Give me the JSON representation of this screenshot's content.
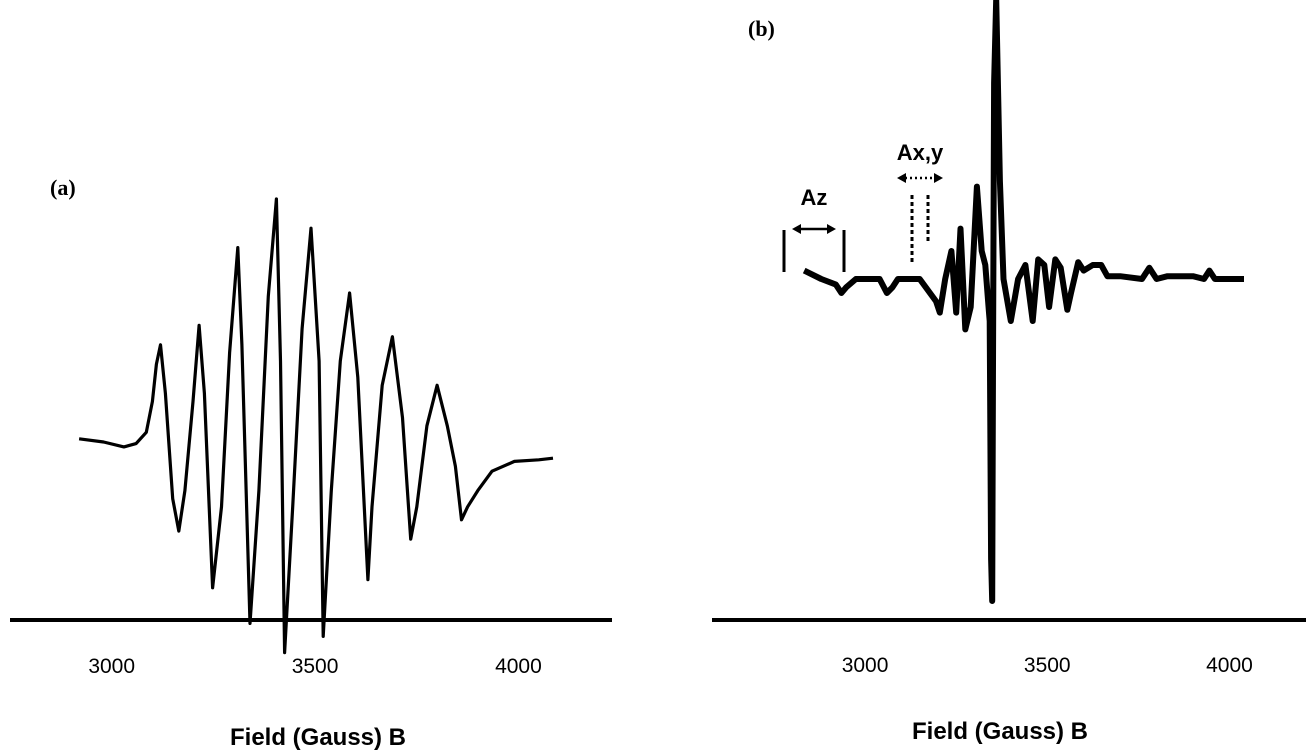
{
  "chart_data": [
    {
      "type": "line",
      "panel_label": "(a)",
      "xlabel": "Field (Gauss) B",
      "ylabel": "",
      "xlim": [
        2750,
        4230
      ],
      "xticks": [
        3000,
        3500,
        4000
      ],
      "grid": false,
      "series": [
        {
          "x": [
            2920,
            2980,
            3030,
            3060,
            3085,
            3100,
            3110,
            3120,
            3132,
            3150,
            3165,
            3180,
            3200,
            3215,
            3228,
            3248,
            3270,
            3290,
            3310,
            3320,
            3340,
            3362,
            3385,
            3405,
            3415,
            3425,
            3445,
            3468,
            3490,
            3510,
            3520,
            3540,
            3562,
            3585,
            3605,
            3630,
            3640,
            3665,
            3690,
            3715,
            3735,
            3750,
            3775,
            3800,
            3825,
            3845,
            3860,
            3875,
            3900,
            3935,
            3990,
            4050,
            4085
          ],
          "y": [
            0.02,
            0.0,
            -0.03,
            -0.01,
            0.06,
            0.25,
            0.48,
            0.6,
            0.3,
            -0.35,
            -0.55,
            -0.3,
            0.25,
            0.72,
            0.3,
            -0.9,
            -0.4,
            0.55,
            1.2,
            0.6,
            -1.12,
            -0.3,
            0.9,
            1.5,
            0.5,
            -1.3,
            -0.4,
            0.7,
            1.32,
            0.5,
            -1.2,
            -0.3,
            0.5,
            0.92,
            0.4,
            -0.85,
            -0.4,
            0.35,
            0.65,
            0.15,
            -0.6,
            -0.4,
            0.1,
            0.35,
            0.1,
            -0.15,
            -0.48,
            -0.4,
            -0.3,
            -0.18,
            -0.12,
            -0.11,
            -0.1
          ]
        }
      ]
    },
    {
      "type": "line",
      "panel_label": "(b)",
      "xlabel": "Field (Gauss) B",
      "ylabel": "",
      "xlim": [
        2580,
        4210
      ],
      "xticks": [
        3000,
        3500,
        4000
      ],
      "grid": false,
      "annotations": [
        "Az",
        "Ax,y"
      ],
      "series": [
        {
          "x": [
            2833,
            2880,
            2920,
            2935,
            2948,
            2975,
            3040,
            3060,
            3075,
            3090,
            3150,
            3195,
            3205,
            3220,
            3237,
            3250,
            3262,
            3275,
            3290,
            3307,
            3320,
            3330,
            3340,
            3342,
            3346,
            3349,
            3351,
            3354,
            3360,
            3370,
            3380,
            3400,
            3420,
            3440,
            3460,
            3475,
            3492,
            3505,
            3522,
            3537,
            3555,
            3565,
            3585,
            3600,
            3625,
            3648,
            3665,
            3700,
            3760,
            3780,
            3800,
            3830,
            3900,
            3930,
            3945,
            3960,
            4000,
            4040
          ],
          "y": [
            0.03,
            0.0,
            -0.02,
            -0.05,
            -0.03,
            0.0,
            0.0,
            -0.05,
            -0.03,
            0.0,
            0.0,
            -0.08,
            -0.12,
            0.0,
            0.1,
            -0.12,
            0.18,
            -0.18,
            -0.1,
            0.33,
            0.1,
            0.05,
            -0.12,
            -0.15,
            -1.0,
            -1.15,
            -0.3,
            0.7,
            1.0,
            0.35,
            0.0,
            -0.15,
            0.0,
            0.05,
            -0.15,
            0.07,
            0.05,
            -0.1,
            0.07,
            0.04,
            -0.11,
            -0.05,
            0.06,
            0.03,
            0.05,
            0.05,
            0.01,
            0.01,
            0.0,
            0.04,
            0.0,
            0.01,
            0.01,
            0.0,
            0.03,
            0.0,
            0.0,
            0.0
          ]
        }
      ]
    }
  ]
}
